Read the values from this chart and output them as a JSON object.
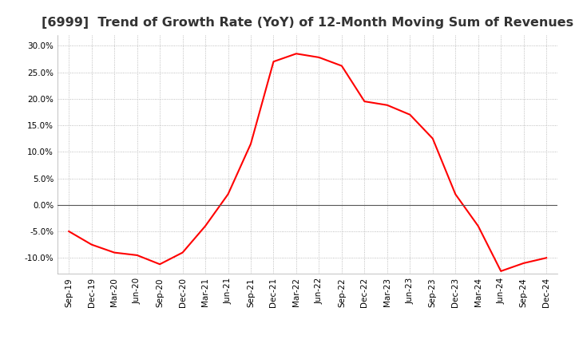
{
  "title": "[6999]  Trend of Growth Rate (YoY) of 12-Month Moving Sum of Revenues",
  "title_fontsize": 11.5,
  "line_color": "#ff0000",
  "background_color": "#ffffff",
  "grid_color": "#aaaaaa",
  "ylim": [
    -0.13,
    0.32
  ],
  "yticks": [
    -0.1,
    -0.05,
    0.0,
    0.05,
    0.1,
    0.15,
    0.2,
    0.25,
    0.3
  ],
  "dates": [
    "Sep-19",
    "Dec-19",
    "Mar-20",
    "Jun-20",
    "Sep-20",
    "Dec-20",
    "Mar-21",
    "Jun-21",
    "Sep-21",
    "Dec-21",
    "Mar-22",
    "Jun-22",
    "Sep-22",
    "Dec-22",
    "Mar-23",
    "Jun-23",
    "Sep-23",
    "Dec-23",
    "Mar-24",
    "Jun-24",
    "Sep-24",
    "Dec-24"
  ],
  "values": [
    -0.05,
    -0.075,
    -0.09,
    -0.095,
    -0.112,
    -0.09,
    -0.04,
    0.02,
    0.115,
    0.27,
    0.285,
    0.278,
    0.262,
    0.195,
    0.188,
    0.17,
    0.125,
    0.02,
    -0.04,
    -0.125,
    -0.11,
    -0.1
  ]
}
